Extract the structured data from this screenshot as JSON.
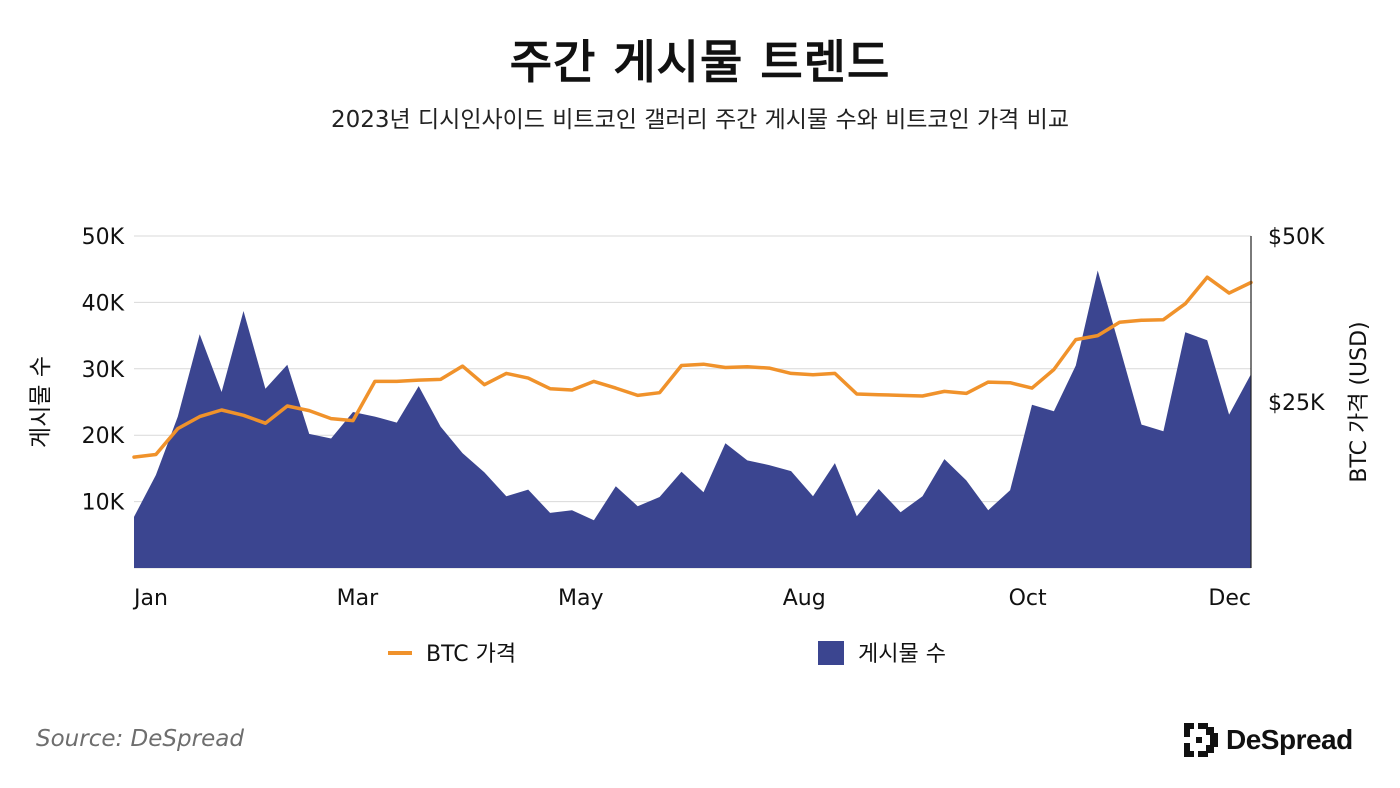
{
  "title": "주간 게시물 트렌드",
  "subtitle": "2023년 디시인사이드 비트코인 갤러리 주간 게시물 수와 비트코인 가격 비교",
  "source": "Source: DeSpread",
  "logo_text": "DeSpread",
  "colors": {
    "posts_fill": "#3b4590",
    "btc_line": "#f0922b",
    "grid": "#d9d9d9",
    "axis": "#222222"
  },
  "chart_data": {
    "type": "area+line",
    "x_tick_labels": [
      "Jan",
      "Mar",
      "May",
      "Aug",
      "Oct",
      "Dec"
    ],
    "y_left": {
      "label": "게시물 수",
      "range": [
        0,
        50000
      ],
      "ticks": [
        10000,
        20000,
        30000,
        40000,
        50000
      ],
      "tick_labels": [
        "10K",
        "20K",
        "30K",
        "40K",
        "50K"
      ]
    },
    "y_right": {
      "label": "BTC 가격 (USD)",
      "range": [
        0,
        50000
      ],
      "ticks": [
        25000,
        50000
      ],
      "tick_labels": [
        "$25K",
        "$50K"
      ]
    },
    "grid": true,
    "legend": {
      "position": "bottom-center"
    },
    "series": [
      {
        "name": "게시물 수",
        "type": "area",
        "values": [
          7700,
          14000,
          22800,
          35200,
          26500,
          38700,
          27000,
          30600,
          20200,
          19500,
          23500,
          22800,
          21900,
          27400,
          21300,
          17300,
          14400,
          10800,
          11800,
          8300,
          8700,
          7200,
          12300,
          9300,
          10700,
          14500,
          11400,
          18800,
          16200,
          15500,
          14600,
          10800,
          15800,
          7800,
          11900,
          8400,
          10800,
          16400,
          13200,
          8700,
          11700,
          24600,
          23600,
          30500,
          44800,
          33300,
          21600,
          20600,
          35500,
          34300,
          23100,
          29200
        ]
      },
      {
        "name": "BTC 가격",
        "type": "line",
        "values": [
          16700,
          17100,
          21000,
          22800,
          23800,
          23000,
          21800,
          24400,
          23700,
          22500,
          22200,
          28100,
          28100,
          28300,
          28400,
          30400,
          27600,
          29300,
          28600,
          27000,
          26800,
          28100,
          27100,
          26000,
          26400,
          30500,
          30700,
          30200,
          30300,
          30100,
          29300,
          29100,
          29300,
          26200,
          26100,
          26000,
          25900,
          26600,
          26300,
          28000,
          27900,
          27100,
          29900,
          34400,
          35000,
          37000,
          37300,
          37400,
          39800,
          43800,
          41400,
          43000
        ]
      }
    ]
  }
}
